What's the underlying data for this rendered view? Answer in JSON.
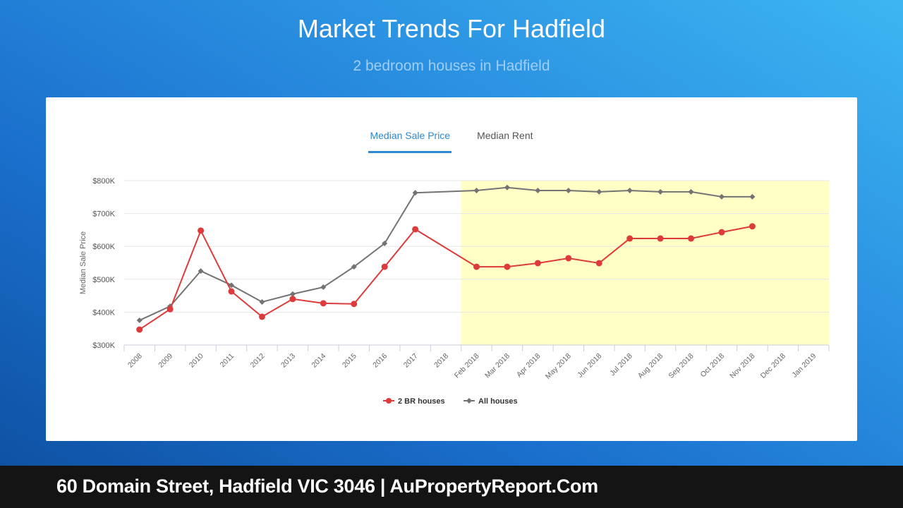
{
  "header": {
    "title": "Market Trends For Hadfield",
    "subtitle": "2 bedroom houses in Hadfield"
  },
  "tabs": [
    {
      "label": "Median Sale Price",
      "active": true
    },
    {
      "label": "Median Rent",
      "active": false
    }
  ],
  "footer": {
    "text": "60 Domain Street, Hadfield VIC 3046 | AuPropertyReport.Com"
  },
  "colors": {
    "series_2br": "#dd3b3b",
    "series_all": "#737373",
    "highlight_band": "#ffffc6",
    "tab_active": "#2f88d0"
  },
  "chart_data": {
    "type": "line",
    "title": "Market Trends For Hadfield",
    "subtitle": "2 bedroom houses in Hadfield",
    "xlabel": "",
    "ylabel": "Median Sale Price",
    "ylim": [
      300000,
      800000
    ],
    "yticks": [
      "$300K",
      "$400K",
      "$500K",
      "$600K",
      "$700K",
      "$800K"
    ],
    "grid": true,
    "legend_position": "bottom",
    "highlight_region": {
      "from": "Feb 2018",
      "to": "Jan 2019",
      "color": "#ffffc6"
    },
    "categories": [
      "2008",
      "2009",
      "2010",
      "2011",
      "2012",
      "2013",
      "2014",
      "2015",
      "2016",
      "2017",
      "2018",
      "Feb 2018",
      "Mar 2018",
      "Apr 2018",
      "May 2018",
      "Jun 2018",
      "Jul 2018",
      "Aug 2018",
      "Sep 2018",
      "Oct 2018",
      "Nov 2018",
      "Dec 2018",
      "Jan 2019"
    ],
    "series": [
      {
        "name": "2 BR houses",
        "color": "#dd3b3b",
        "marker": "circle",
        "values": [
          347000,
          409000,
          648000,
          463000,
          386000,
          440000,
          427000,
          425000,
          538000,
          652000,
          null,
          538000,
          538000,
          549000,
          564000,
          549000,
          624000,
          624000,
          624000,
          643000,
          661000,
          null,
          null
        ]
      },
      {
        "name": "All houses",
        "color": "#737373",
        "marker": "diamond",
        "values": [
          375000,
          418000,
          525000,
          482000,
          431000,
          455000,
          476000,
          538000,
          609000,
          763000,
          null,
          770000,
          779000,
          770000,
          770000,
          766000,
          770000,
          766000,
          766000,
          751000,
          751000,
          null,
          null
        ]
      }
    ]
  }
}
